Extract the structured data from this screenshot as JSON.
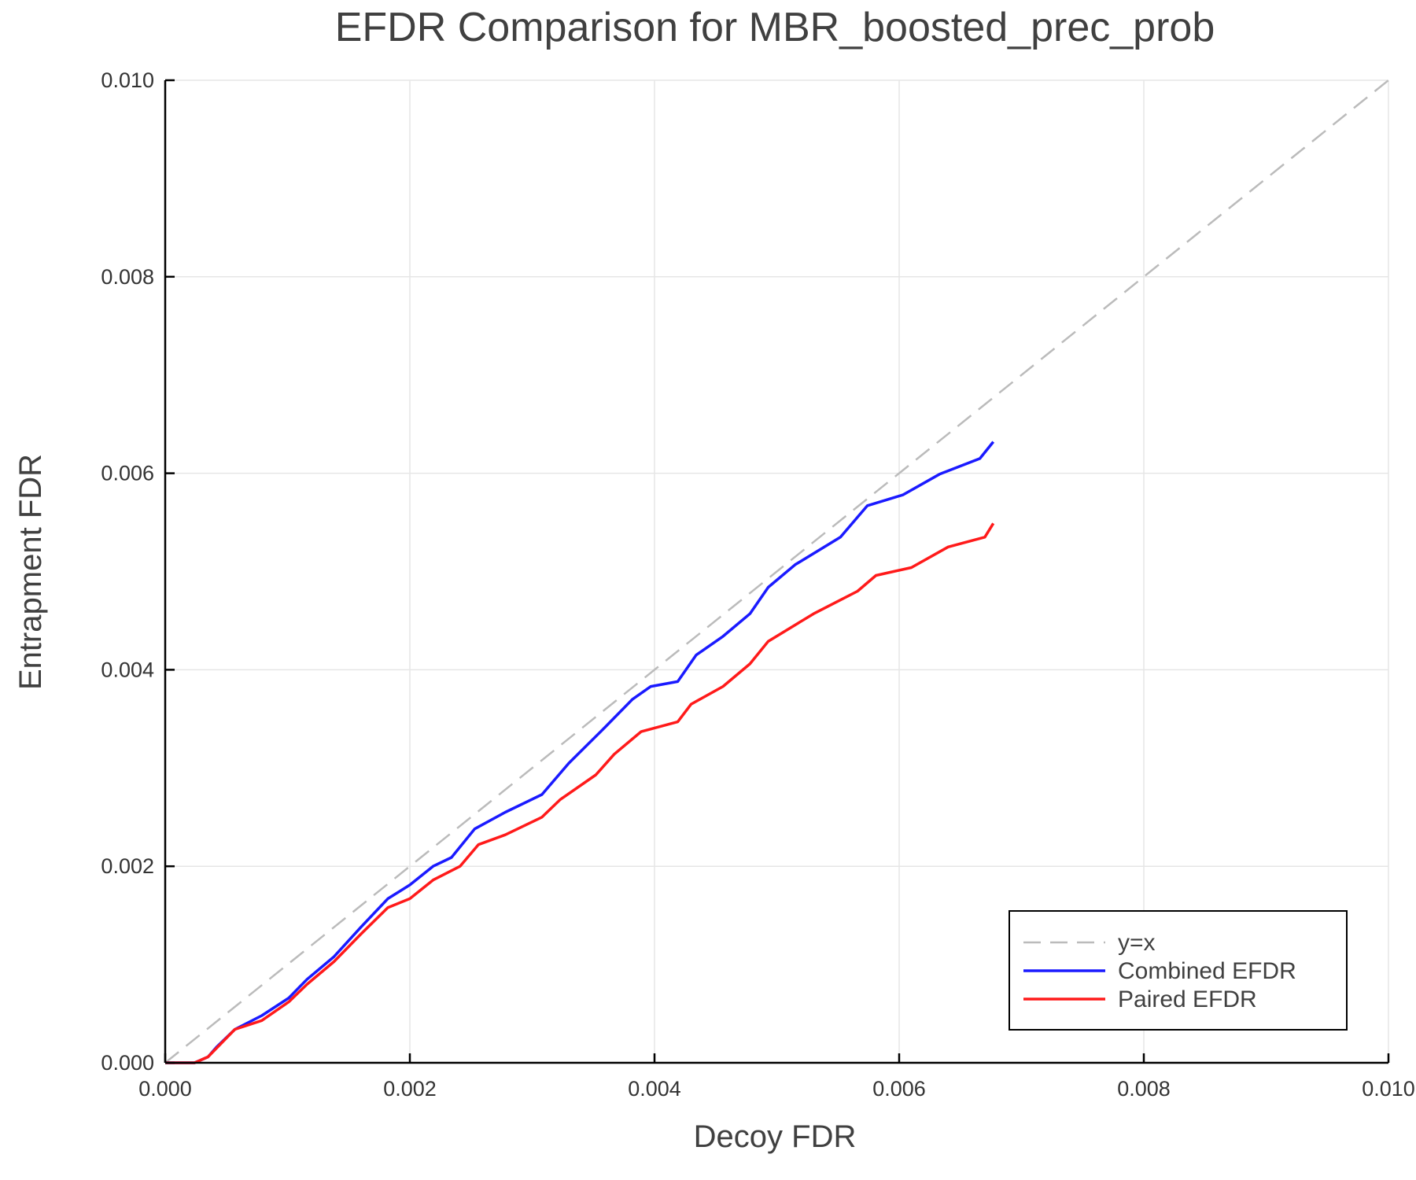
{
  "chart_data": {
    "type": "line",
    "title": "EFDR Comparison for MBR_boosted_prec_prob",
    "xlabel": "Decoy FDR",
    "ylabel": "Entrapment FDR",
    "xlim": [
      0,
      0.01
    ],
    "ylim": [
      0,
      0.01
    ],
    "xticks": [
      "0.000",
      "0.002",
      "0.004",
      "0.006",
      "0.008",
      "0.010"
    ],
    "yticks": [
      "0.000",
      "0.002",
      "0.004",
      "0.006",
      "0.008",
      "0.010"
    ],
    "grid": true,
    "legend_position": "bottom-right",
    "series": [
      {
        "name": "y=x",
        "color": "#bbbbbb",
        "dash": true,
        "x": [
          0,
          0.01
        ],
        "y": [
          0,
          0.01
        ]
      },
      {
        "name": "Combined EFDR",
        "color": "#1a1aff",
        "x": [
          0,
          0.00024,
          0.00035,
          0.00042,
          0.00057,
          0.00079,
          0.00101,
          0.00116,
          0.00138,
          0.0016,
          0.00182,
          0.002,
          0.00219,
          0.00234,
          0.00253,
          0.00278,
          0.00308,
          0.0033,
          0.0036,
          0.00382,
          0.00397,
          0.00419,
          0.00434,
          0.00456,
          0.00478,
          0.00493,
          0.00515,
          0.00552,
          0.00574,
          0.00603,
          0.00633,
          0.00666,
          0.00677
        ],
        "y": [
          0,
          0,
          6e-05,
          0.00016,
          0.00034,
          0.00048,
          0.00066,
          0.00085,
          0.00108,
          0.00138,
          0.00167,
          0.00181,
          0.002,
          0.00209,
          0.00238,
          0.00255,
          0.00273,
          0.00305,
          0.00342,
          0.0037,
          0.00383,
          0.00388,
          0.00415,
          0.00434,
          0.00457,
          0.00484,
          0.00507,
          0.00535,
          0.00567,
          0.00578,
          0.00599,
          0.00615,
          0.00632
        ]
      },
      {
        "name": "Paired EFDR",
        "color": "#ff1a1a",
        "x": [
          0,
          0.00024,
          0.00035,
          0.00057,
          0.00079,
          0.00101,
          0.00116,
          0.00138,
          0.0016,
          0.00182,
          0.002,
          0.00219,
          0.00241,
          0.00256,
          0.00278,
          0.00308,
          0.00323,
          0.00352,
          0.00367,
          0.00389,
          0.00419,
          0.0043,
          0.00456,
          0.00478,
          0.00493,
          0.0053,
          0.00566,
          0.00581,
          0.0061,
          0.0064,
          0.0067,
          0.00677
        ],
        "y": [
          0,
          0,
          6e-05,
          0.00034,
          0.00043,
          0.00062,
          0.0008,
          0.00103,
          0.00131,
          0.00158,
          0.00167,
          0.00186,
          0.002,
          0.00222,
          0.00232,
          0.0025,
          0.00268,
          0.00293,
          0.00314,
          0.00337,
          0.00347,
          0.00365,
          0.00383,
          0.00406,
          0.00429,
          0.00457,
          0.0048,
          0.00496,
          0.00504,
          0.00525,
          0.00535,
          0.00549
        ]
      }
    ]
  }
}
